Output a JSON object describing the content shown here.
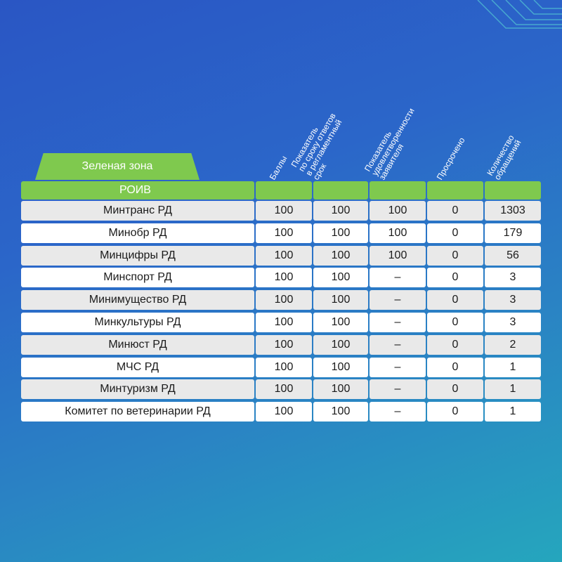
{
  "zone_label": "Зеленая зона",
  "column_headers": [
    {
      "lines": "Баллы"
    },
    {
      "lines": "Показатель\nпо сроку ответов\nв регламентный\nсрок"
    },
    {
      "lines": "Показатель\nудовлетворенности\nзаявителя"
    },
    {
      "lines": "Просрочено"
    },
    {
      "lines": "Количество\nобращений"
    }
  ],
  "group_label": "РОИВ",
  "rows": [
    {
      "name": "Минтранс РД",
      "score": "100",
      "timely": "100",
      "satisfaction": "100",
      "overdue": "0",
      "count": "1303"
    },
    {
      "name": "Минобр РД",
      "score": "100",
      "timely": "100",
      "satisfaction": "100",
      "overdue": "0",
      "count": "179"
    },
    {
      "name": "Минцифры РД",
      "score": "100",
      "timely": "100",
      "satisfaction": "100",
      "overdue": "0",
      "count": "56"
    },
    {
      "name": "Минспорт РД",
      "score": "100",
      "timely": "100",
      "satisfaction": "–",
      "overdue": "0",
      "count": "3"
    },
    {
      "name": "Минимущество РД",
      "score": "100",
      "timely": "100",
      "satisfaction": "–",
      "overdue": "0",
      "count": "3"
    },
    {
      "name": "Минкультуры РД",
      "score": "100",
      "timely": "100",
      "satisfaction": "–",
      "overdue": "0",
      "count": "3"
    },
    {
      "name": "Минюст РД",
      "score": "100",
      "timely": "100",
      "satisfaction": "–",
      "overdue": "0",
      "count": "2"
    },
    {
      "name": "МЧС РД",
      "score": "100",
      "timely": "100",
      "satisfaction": "–",
      "overdue": "0",
      "count": "1"
    },
    {
      "name": "Минтуризм РД",
      "score": "100",
      "timely": "100",
      "satisfaction": "–",
      "overdue": "0",
      "count": "1"
    },
    {
      "name": "Комитет по ветеринарии РД",
      "score": "100",
      "timely": "100",
      "satisfaction": "–",
      "overdue": "0",
      "count": "1"
    }
  ],
  "colors": {
    "zone_green": "#7fc94e",
    "row_white": "#ffffff",
    "row_grey": "#e9e9e9",
    "background_blue": "#2a56c4",
    "background_teal": "#25a6bd"
  }
}
